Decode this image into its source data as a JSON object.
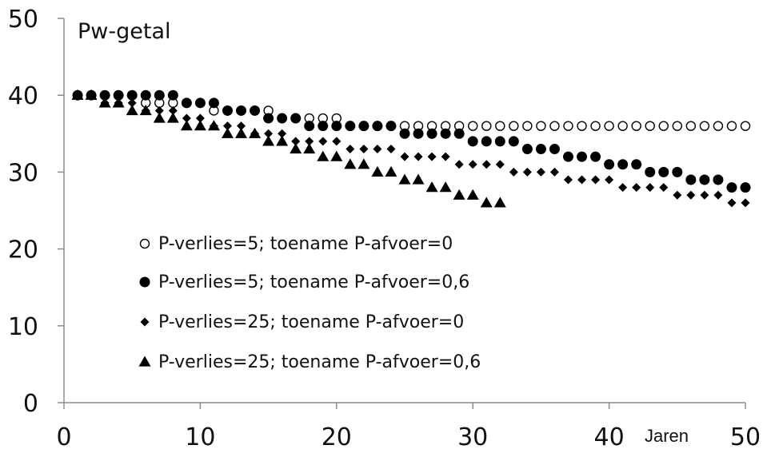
{
  "chart_data": {
    "type": "scatter",
    "title": "Pw-getal",
    "xlabel": "Jaren",
    "ylabel": "",
    "xlim": [
      0,
      50
    ],
    "ylim": [
      0,
      50
    ],
    "x_ticks": [
      0,
      10,
      20,
      30,
      40,
      50
    ],
    "y_ticks": [
      0,
      10,
      20,
      30,
      40,
      50
    ],
    "x_tick_labels": [
      "0",
      "10",
      "20",
      "30",
      "40",
      "50"
    ],
    "y_tick_labels": [
      "0",
      "10",
      "20",
      "30",
      "40",
      "50"
    ],
    "grid": false,
    "legend_position": "center-left",
    "series": [
      {
        "name": "P-verlies=5; toename P-afvoer=0",
        "marker": "open-circle",
        "color": "#000000",
        "x": [
          1,
          2,
          3,
          4,
          5,
          6,
          7,
          8,
          9,
          10,
          11,
          12,
          13,
          14,
          15,
          16,
          17,
          18,
          19,
          20,
          21,
          22,
          23,
          24,
          25,
          26,
          27,
          28,
          29,
          30,
          31,
          32,
          33,
          34,
          35,
          36,
          37,
          38,
          39,
          40,
          41,
          42,
          43,
          44,
          45,
          46,
          47,
          48,
          49,
          50
        ],
        "y": [
          40,
          40,
          40,
          40,
          40,
          39,
          39,
          39,
          39,
          39,
          38,
          38,
          38,
          38,
          38,
          37,
          37,
          37,
          37,
          37,
          36,
          36,
          36,
          36,
          36,
          36,
          36,
          36,
          36,
          36,
          36,
          36,
          36,
          36,
          36,
          36,
          36,
          36,
          36,
          36,
          36,
          36,
          36,
          36,
          36,
          36,
          36,
          36,
          36,
          36
        ]
      },
      {
        "name": "P-verlies=5; toename P-afvoer=0,6",
        "marker": "filled-circle",
        "color": "#000000",
        "x": [
          1,
          2,
          3,
          4,
          5,
          6,
          7,
          8,
          9,
          10,
          11,
          12,
          13,
          14,
          15,
          16,
          17,
          18,
          19,
          20,
          21,
          22,
          23,
          24,
          25,
          26,
          27,
          28,
          29,
          30,
          31,
          32,
          33,
          34,
          35,
          36,
          37,
          38,
          39,
          40,
          41,
          42,
          43,
          44,
          45,
          46,
          47,
          48,
          49,
          50
        ],
        "y": [
          40,
          40,
          40,
          40,
          40,
          40,
          40,
          40,
          39,
          39,
          39,
          38,
          38,
          38,
          37,
          37,
          37,
          36,
          36,
          36,
          36,
          36,
          36,
          36,
          35,
          35,
          35,
          35,
          35,
          34,
          34,
          34,
          34,
          33,
          33,
          33,
          32,
          32,
          32,
          31,
          31,
          31,
          30,
          30,
          30,
          29,
          29,
          29,
          28,
          28
        ]
      },
      {
        "name": "P-verlies=25; toename P-afvoer=0",
        "marker": "filled-diamond",
        "color": "#000000",
        "x": [
          1,
          2,
          3,
          4,
          5,
          6,
          7,
          8,
          9,
          10,
          11,
          12,
          13,
          14,
          15,
          16,
          17,
          18,
          19,
          20,
          21,
          22,
          23,
          24,
          25,
          26,
          27,
          28,
          29,
          30,
          31,
          32,
          33,
          34,
          35,
          36,
          37,
          38,
          39,
          40,
          41,
          42,
          43,
          44,
          45,
          46,
          47,
          48,
          49,
          50
        ],
        "y": [
          40,
          40,
          39,
          39,
          39,
          38,
          38,
          38,
          37,
          37,
          36,
          36,
          36,
          35,
          35,
          35,
          34,
          34,
          34,
          34,
          33,
          33,
          33,
          33,
          32,
          32,
          32,
          32,
          31,
          31,
          31,
          31,
          30,
          30,
          30,
          30,
          29,
          29,
          29,
          29,
          28,
          28,
          28,
          28,
          27,
          27,
          27,
          27,
          26,
          26
        ]
      },
      {
        "name": "P-verlies=25; toename P-afvoer=0,6",
        "marker": "filled-triangle",
        "color": "#000000",
        "x": [
          1,
          2,
          3,
          4,
          5,
          6,
          7,
          8,
          9,
          10,
          11,
          12,
          13,
          14,
          15,
          16,
          17,
          18,
          19,
          20,
          21,
          22,
          23,
          24,
          25,
          26,
          27,
          28,
          29,
          30,
          31,
          32
        ],
        "y": [
          40,
          40,
          39,
          39,
          38,
          38,
          37,
          37,
          36,
          36,
          36,
          35,
          35,
          35,
          34,
          34,
          33,
          33,
          32,
          32,
          31,
          31,
          30,
          30,
          29,
          29,
          28,
          28,
          27,
          27,
          26,
          26
        ]
      }
    ]
  }
}
